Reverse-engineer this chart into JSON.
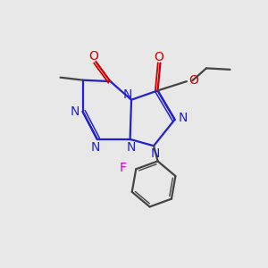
{
  "background_color": "#e8e8e8",
  "bond_color_ring": "#2222cc",
  "bond_color_carbon": "#444444",
  "oxygen_color": "#cc0000",
  "fluorine_color": "#cc00cc",
  "figsize": [
    3.0,
    3.0
  ],
  "dpi": 100,
  "xlim": [
    0,
    10
  ],
  "ylim": [
    0,
    10
  ]
}
